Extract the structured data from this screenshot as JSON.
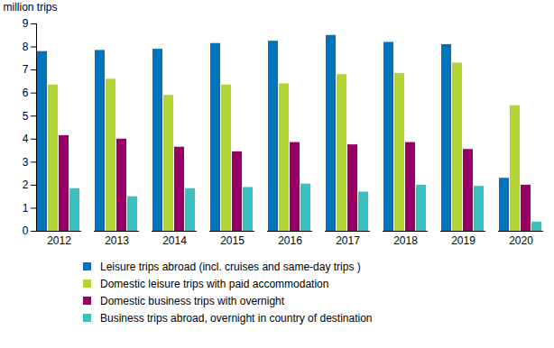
{
  "chart_data": {
    "type": "bar",
    "y_label": "million trips",
    "categories": [
      "2012",
      "2013",
      "2014",
      "2015",
      "2016",
      "2017",
      "2018",
      "2019",
      "2020"
    ],
    "series": [
      {
        "name": "Leisure trips abroad (incl. cruises and same-day trips )",
        "color": "#0075be",
        "values": [
          7.8,
          7.85,
          7.9,
          8.15,
          8.25,
          8.5,
          8.2,
          8.1,
          2.3
        ]
      },
      {
        "name": "Domestic leisure trips with paid accommodation",
        "color": "#b4d335",
        "values": [
          6.35,
          6.6,
          5.9,
          6.35,
          6.4,
          6.8,
          6.85,
          7.3,
          5.45
        ]
      },
      {
        "name": "Domestic business trips with overnight",
        "color": "#990066",
        "values": [
          4.15,
          4.0,
          3.65,
          3.45,
          3.85,
          3.75,
          3.85,
          3.55,
          2.0
        ]
      },
      {
        "name": "Business trips abroad, overnight in country of destination",
        "color": "#3cc0c0",
        "values": [
          1.85,
          1.5,
          1.85,
          1.9,
          2.05,
          1.7,
          2.0,
          1.95,
          0.4
        ]
      }
    ],
    "ylim": [
      0,
      9
    ],
    "yticks": [
      0,
      1,
      2,
      3,
      4,
      5,
      6,
      7,
      8,
      9
    ],
    "grid": false,
    "legend": "bottom"
  }
}
